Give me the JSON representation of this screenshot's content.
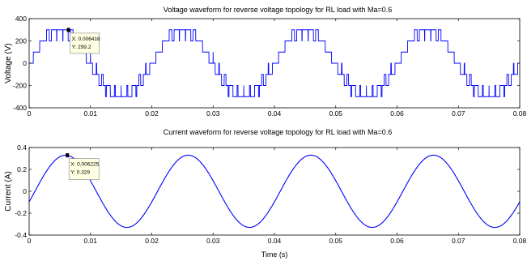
{
  "chart_data": [
    {
      "type": "line",
      "title": "Voltage waveform for reverse voltage topology for RL load with Ma=0.6",
      "xlabel": "",
      "ylabel": "Voltage (V)",
      "xlim": [
        0,
        0.08
      ],
      "ylim": [
        -400,
        400
      ],
      "x_ticks": [
        "0",
        "0.01",
        "0.02",
        "0.03",
        "0.04",
        "0.05",
        "0.06",
        "0.07",
        "0.08"
      ],
      "y_ticks": [
        "400",
        "200",
        "0",
        "-200",
        "-400"
      ],
      "series": [
        {
          "name": "",
          "color": "#0000ff",
          "waveform": "multilevel-pwm",
          "fundamental_hz": 50,
          "peak": 299.2,
          "levels": [
            -300,
            -200,
            -100,
            0,
            100,
            200,
            300
          ]
        }
      ],
      "datatip": {
        "x_label": "X: 0.006418",
        "y_label": "Y: 299.2",
        "x": 0.006418,
        "y": 299.2
      }
    },
    {
      "type": "line",
      "title": "Current waveform for reverse voltage topology for RL load with Ma=0.6",
      "xlabel": "Time (s)",
      "ylabel": "Current (A)",
      "xlim": [
        0,
        0.08
      ],
      "ylim": [
        -0.4,
        0.4
      ],
      "x_ticks": [
        "0",
        "0.01",
        "0.02",
        "0.03",
        "0.04",
        "0.05",
        "0.06",
        "0.07",
        "0.08"
      ],
      "y_ticks": [
        "0.4",
        "0.2",
        "0",
        "-0.2",
        "-0.4"
      ],
      "series": [
        {
          "name": "",
          "color": "#0000ff",
          "waveform": "sine",
          "frequency_hz": 50,
          "amplitude": 0.33,
          "lag_deg": 17
        }
      ],
      "datatip": {
        "x_label": "X: 0.006225",
        "y_label": "Y: 0.329",
        "x": 0.006225,
        "y": 0.329
      }
    }
  ]
}
